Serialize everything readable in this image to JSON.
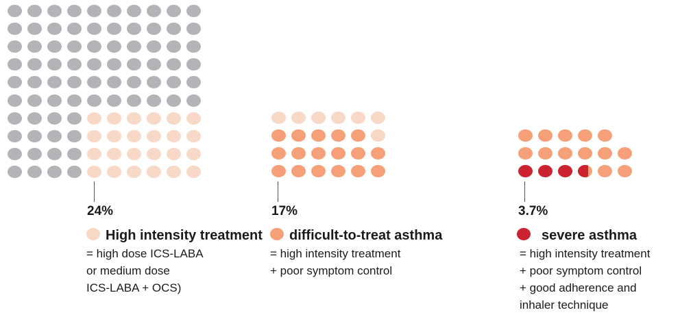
{
  "colors": {
    "grey": "#b3b3b8",
    "light_peach": "#f8d9c8",
    "orange": "#f5a078",
    "red": "#cc2331"
  },
  "panels": [
    {
      "percent": "24%",
      "title": "High intensity treatment",
      "desc": [
        "= high dose ICS-LABA",
        "or medium dose",
        "ICS-LABA + OCS)"
      ],
      "dot_counts": {
        "grey": 76,
        "light_peach": 24
      }
    },
    {
      "percent": "17%",
      "title": "difficult-to-treat asthma",
      "desc": [
        "= high intensity treatment",
        "+ poor symptom control"
      ],
      "dot_counts": {
        "light_peach": 7,
        "orange": 17
      }
    },
    {
      "percent": "3.7%",
      "title": "severe asthma",
      "desc": [
        "= high intensity treatment",
        "+ poor symptom control",
        "+ good adherence and",
        "inhaler technique"
      ],
      "dot_counts": {
        "red": 3.7,
        "orange": 13.3
      }
    }
  ]
}
